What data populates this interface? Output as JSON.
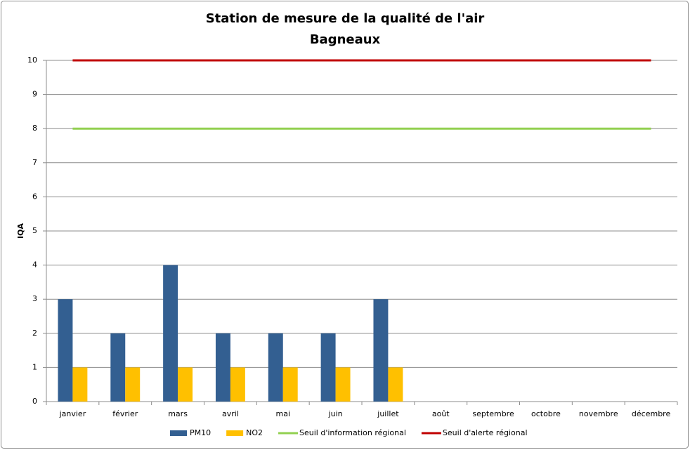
{
  "chart_data": {
    "type": "bar",
    "title": "Station de mesure de la qualité de l'air",
    "subtitle": "Bagneaux",
    "y_label": "IQA",
    "categories": [
      "janvier",
      "février",
      "mars",
      "avril",
      "mai",
      "juin",
      "juillet",
      "août",
      "septembre",
      "octobre",
      "novembre",
      "décembre"
    ],
    "series": [
      {
        "name": "PM10",
        "type": "bar",
        "color": "#335f91",
        "values": [
          3,
          2,
          4,
          2,
          2,
          2,
          3,
          null,
          null,
          null,
          null,
          null
        ]
      },
      {
        "name": "NO2",
        "type": "bar",
        "color": "#ffc000",
        "values": [
          1,
          1,
          1,
          1,
          1,
          1,
          1,
          null,
          null,
          null,
          null,
          null
        ]
      },
      {
        "name": "Seuil d'information régional",
        "type": "line",
        "color": "#92d050",
        "values": [
          8,
          8,
          8,
          8,
          8,
          8,
          8,
          8,
          8,
          8,
          8,
          8
        ]
      },
      {
        "name": "Seuil d'alerte régional",
        "type": "line",
        "color": "#c00000",
        "values": [
          10,
          10,
          10,
          10,
          10,
          10,
          10,
          10,
          10,
          10,
          10,
          10
        ]
      }
    ],
    "ylim": [
      0,
      10
    ],
    "yticks": [
      0,
      1,
      2,
      3,
      4,
      5,
      6,
      7,
      8,
      9,
      10
    ],
    "grid": true,
    "legend": "bottom"
  }
}
